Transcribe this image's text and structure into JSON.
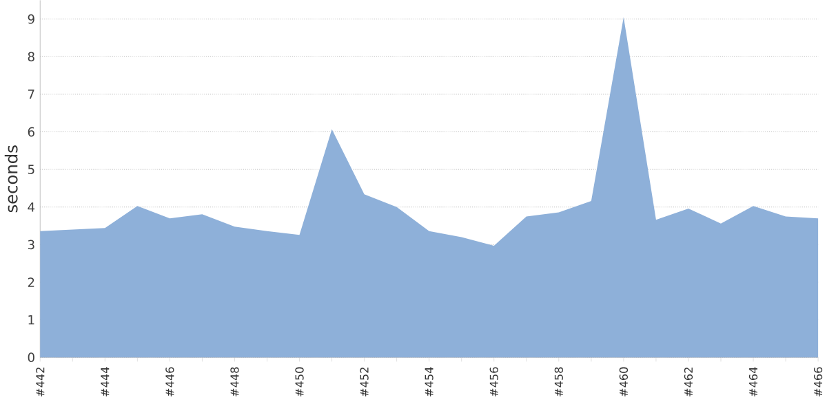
{
  "chart_data": {
    "type": "area",
    "ylabel": "seconds",
    "categories": [
      "#442",
      null,
      "#444",
      null,
      "#446",
      null,
      "#448",
      null,
      "#450",
      null,
      "#452",
      null,
      "#454",
      null,
      "#456",
      null,
      "#458",
      null,
      "#460",
      null,
      "#462",
      null,
      "#464",
      null,
      "#466"
    ],
    "series": [
      {
        "color": "#8eb0d9",
        "values": [
          3.36,
          3.4,
          3.44,
          4.03,
          3.7,
          3.81,
          3.48,
          3.36,
          3.26,
          6.07,
          4.34,
          4.0,
          3.36,
          3.2,
          2.97,
          3.75,
          3.86,
          4.16,
          9.05,
          3.66,
          3.96,
          3.56,
          4.03,
          3.75,
          3.7
        ]
      }
    ],
    "ylim": [
      0,
      9.5
    ],
    "yticks": [
      0,
      1,
      2,
      3,
      4,
      5,
      6,
      7,
      8,
      9
    ],
    "grid": "y"
  }
}
